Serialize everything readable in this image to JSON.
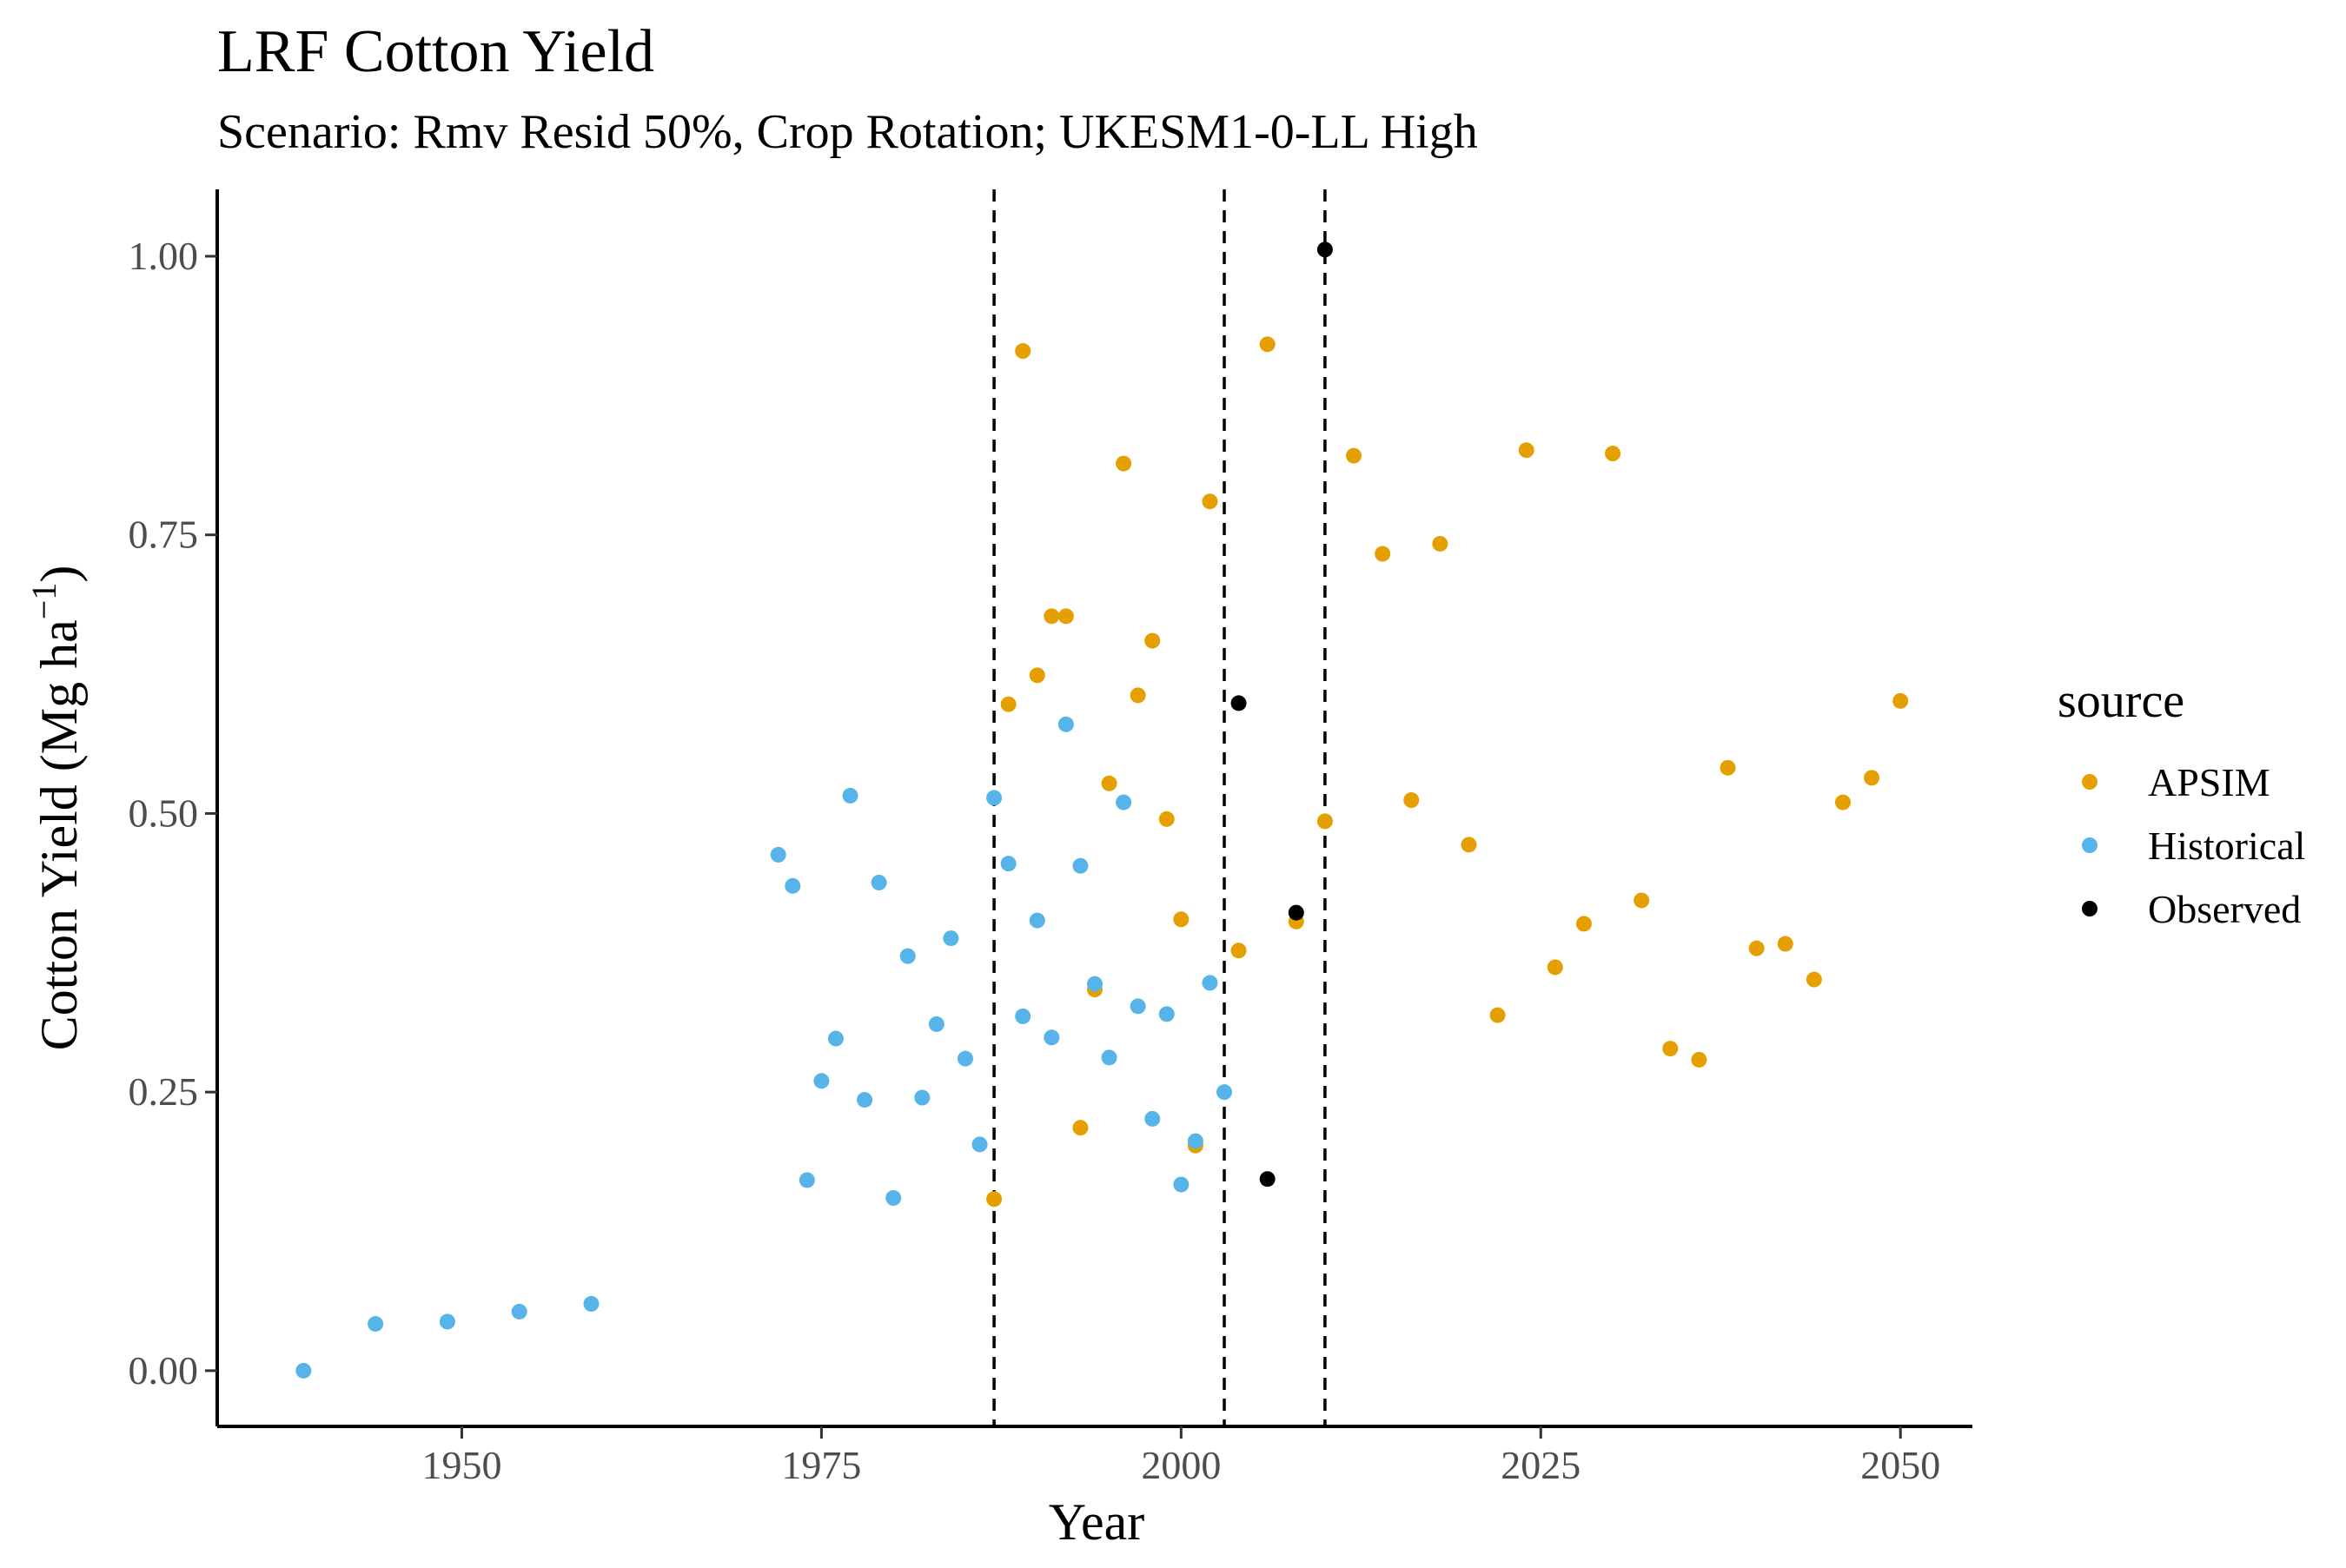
{
  "chart_data": {
    "type": "scatter",
    "title": "LRF Cotton Yield",
    "subtitle": "Scenario: Rmv Resid 50%, Crop Rotation; UKESM1-0-LL High",
    "xlabel": "Year",
    "ylabel_main": "Cotton Yield (Mg ha",
    "ylabel_sup": "−1",
    "ylabel_close": ")",
    "xlim": [
      1933,
      2055
    ],
    "ylim": [
      -0.05,
      1.06
    ],
    "x_ticks": [
      1950,
      1975,
      2000,
      2025,
      2050
    ],
    "x_tick_labels": [
      "1950",
      "1975",
      "2000",
      "2025",
      "2050"
    ],
    "y_ticks": [
      0,
      0.25,
      0.5,
      0.75,
      1.0
    ],
    "y_tick_labels": [
      "0.00",
      "0.25",
      "0.50",
      "0.75",
      "1.00"
    ],
    "vlines": [
      1987,
      2003,
      2010
    ],
    "grid": false,
    "legend": {
      "title": "source",
      "position": "right"
    },
    "series": [
      {
        "name": "APSIM",
        "color": "#E69F00",
        "points": [
          [
            1987,
            0.154
          ],
          [
            1988,
            0.598
          ],
          [
            1989,
            0.915
          ],
          [
            1990,
            0.624
          ],
          [
            1991,
            0.677
          ],
          [
            1992,
            0.677
          ],
          [
            1993,
            0.218
          ],
          [
            1994,
            0.342
          ],
          [
            1995,
            0.527
          ],
          [
            1996,
            0.814
          ],
          [
            1997,
            0.606
          ],
          [
            1998,
            0.655
          ],
          [
            1999,
            0.495
          ],
          [
            2000,
            0.405
          ],
          [
            2001,
            0.202
          ],
          [
            2002,
            0.78
          ],
          [
            2004,
            0.377
          ],
          [
            2006,
            0.921
          ],
          [
            2008,
            0.403
          ],
          [
            2010,
            0.493
          ],
          [
            2012,
            0.821
          ],
          [
            2014,
            0.733
          ],
          [
            2016,
            0.512
          ],
          [
            2018,
            0.742
          ],
          [
            2020,
            0.472
          ],
          [
            2022,
            0.319
          ],
          [
            2024,
            0.826
          ],
          [
            2026,
            0.362
          ],
          [
            2028,
            0.401
          ],
          [
            2030,
            0.823
          ],
          [
            2032,
            0.422
          ],
          [
            2034,
            0.289
          ],
          [
            2036,
            0.279
          ],
          [
            2038,
            0.541
          ],
          [
            2040,
            0.379
          ],
          [
            2042,
            0.383
          ],
          [
            2044,
            0.351
          ],
          [
            2046,
            0.51
          ],
          [
            2048,
            0.532
          ],
          [
            2050,
            0.601
          ]
        ]
      },
      {
        "name": "Historical",
        "color": "#56B4E9",
        "points": [
          [
            1939,
            0.0
          ],
          [
            1944,
            0.042
          ],
          [
            1949,
            0.044
          ],
          [
            1954,
            0.053
          ],
          [
            1959,
            0.06
          ],
          [
            1972,
            0.463
          ],
          [
            1973,
            0.435
          ],
          [
            1974,
            0.171
          ],
          [
            1975,
            0.26
          ],
          [
            1976,
            0.298
          ],
          [
            1977,
            0.516
          ],
          [
            1978,
            0.243
          ],
          [
            1979,
            0.438
          ],
          [
            1980,
            0.155
          ],
          [
            1981,
            0.372
          ],
          [
            1982,
            0.245
          ],
          [
            1983,
            0.311
          ],
          [
            1984,
            0.388
          ],
          [
            1985,
            0.28
          ],
          [
            1986,
            0.203
          ],
          [
            1987,
            0.514
          ],
          [
            1988,
            0.455
          ],
          [
            1989,
            0.318
          ],
          [
            1990,
            0.404
          ],
          [
            1991,
            0.299
          ],
          [
            1992,
            0.58
          ],
          [
            1993,
            0.453
          ],
          [
            1994,
            0.347
          ],
          [
            1995,
            0.281
          ],
          [
            1996,
            0.51
          ],
          [
            1997,
            0.327
          ],
          [
            1998,
            0.226
          ],
          [
            1999,
            0.32
          ],
          [
            2000,
            0.167
          ],
          [
            2001,
            0.206
          ],
          [
            2002,
            0.348
          ],
          [
            2003,
            0.25
          ]
        ]
      },
      {
        "name": "Observed",
        "color": "#000000",
        "points": [
          [
            2004,
            0.599
          ],
          [
            2006,
            0.172
          ],
          [
            2008,
            0.411
          ],
          [
            2010,
            1.006
          ]
        ]
      }
    ]
  }
}
